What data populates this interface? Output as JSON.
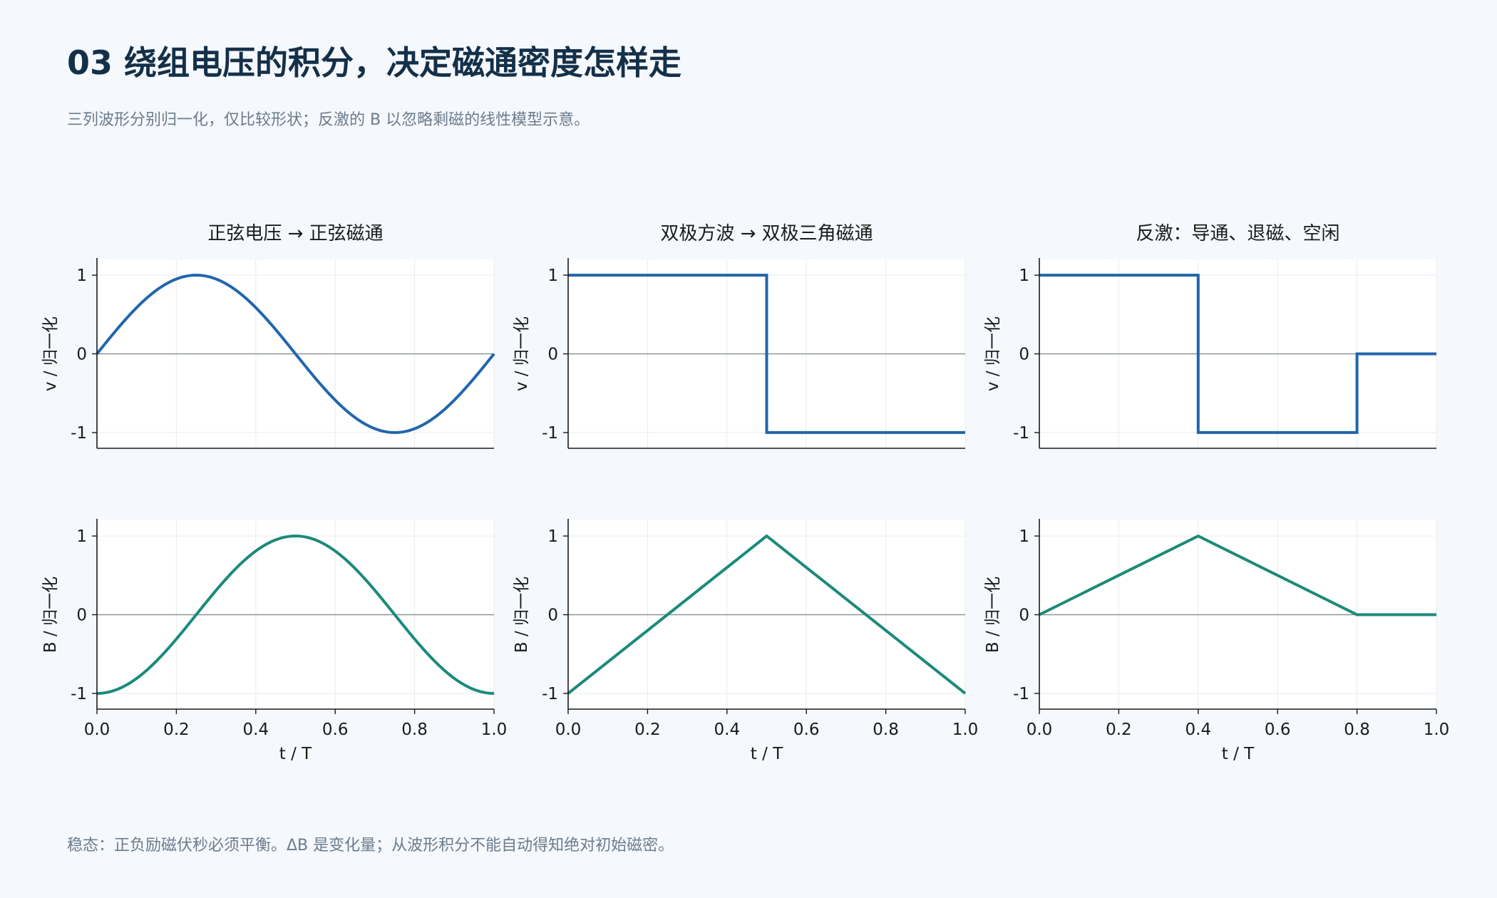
{
  "header": {
    "title": "03  绕组电压的积分，决定磁通密度怎样走",
    "subtitle": "三列波形分别归一化，仅比较形状；反激的 B 以忽略剩磁的线性模型示意。"
  },
  "footer": {
    "note": "稳态：正负励磁伏秒必须平衡。ΔB 是变化量；从波形积分不能自动得知绝对初始磁密。"
  },
  "colors": {
    "voltage": "#2166ac",
    "flux": "#1b8a7a",
    "zero_line": "#8a9499",
    "grid": "#e8ecef",
    "axis": "#1a1a1a"
  },
  "chart_data": [
    {
      "type": "line",
      "title": "正弦电压 → 正弦磁通",
      "xlabel": "",
      "ylabel": "v / 归一化",
      "xlim": [
        0,
        1
      ],
      "ylim": [
        -1.2,
        1.2
      ],
      "yticks": [
        "1",
        "0",
        "-1"
      ],
      "xticks": [],
      "grid": true,
      "series": [
        {
          "function": "sin",
          "points": [
            [
              0,
              0
            ],
            [
              0.25,
              1
            ],
            [
              0.5,
              0
            ],
            [
              0.75,
              -1
            ],
            [
              1,
              0
            ]
          ]
        }
      ]
    },
    {
      "type": "line",
      "title": "双极方波 → 双极三角磁通",
      "xlabel": "",
      "ylabel": "v / 归一化",
      "xlim": [
        0,
        1
      ],
      "ylim": [
        -1.2,
        1.2
      ],
      "yticks": [
        "1",
        "0",
        "-1"
      ],
      "xticks": [],
      "grid": true,
      "series": [
        {
          "function": "step",
          "points": [
            [
              0,
              1
            ],
            [
              0.5,
              1
            ],
            [
              0.5,
              -1
            ],
            [
              1,
              -1
            ]
          ]
        }
      ]
    },
    {
      "type": "line",
      "title": "反激：导通、退磁、空闲",
      "xlabel": "",
      "ylabel": "v / 归一化",
      "xlim": [
        0,
        1
      ],
      "ylim": [
        -1.2,
        1.2
      ],
      "yticks": [
        "1",
        "0",
        "-1"
      ],
      "xticks": [],
      "grid": true,
      "series": [
        {
          "function": "step",
          "points": [
            [
              0,
              1
            ],
            [
              0.4,
              1
            ],
            [
              0.4,
              -1
            ],
            [
              0.8,
              -1
            ],
            [
              0.8,
              0
            ],
            [
              1,
              0
            ]
          ]
        }
      ]
    },
    {
      "type": "line",
      "title": "",
      "xlabel": "t / T",
      "ylabel": "B / 归一化",
      "xlim": [
        0,
        1
      ],
      "ylim": [
        -1.2,
        1.2
      ],
      "yticks": [
        "1",
        "0",
        "-1"
      ],
      "xticks": [
        "0.0",
        "0.2",
        "0.4",
        "0.6",
        "0.8",
        "1.0"
      ],
      "grid": true,
      "series": [
        {
          "function": "negcos",
          "points": [
            [
              0,
              -1
            ],
            [
              0.25,
              0
            ],
            [
              0.5,
              1
            ],
            [
              0.75,
              0
            ],
            [
              1,
              -1
            ]
          ]
        }
      ]
    },
    {
      "type": "line",
      "title": "",
      "xlabel": "t / T",
      "ylabel": "B / 归一化",
      "xlim": [
        0,
        1
      ],
      "ylim": [
        -1.2,
        1.2
      ],
      "yticks": [
        "1",
        "0",
        "-1"
      ],
      "xticks": [
        "0.0",
        "0.2",
        "0.4",
        "0.6",
        "0.8",
        "1.0"
      ],
      "grid": true,
      "series": [
        {
          "function": "linear",
          "points": [
            [
              0,
              -1
            ],
            [
              0.5,
              1
            ],
            [
              1,
              -1
            ]
          ]
        }
      ]
    },
    {
      "type": "line",
      "title": "",
      "xlabel": "t / T",
      "ylabel": "B / 归一化",
      "xlim": [
        0,
        1
      ],
      "ylim": [
        -1.2,
        1.2
      ],
      "yticks": [
        "1",
        "0",
        "-1"
      ],
      "xticks": [
        "0.0",
        "0.2",
        "0.4",
        "0.6",
        "0.8",
        "1.0"
      ],
      "grid": true,
      "series": [
        {
          "function": "linear",
          "points": [
            [
              0,
              0
            ],
            [
              0.4,
              1
            ],
            [
              0.8,
              0
            ],
            [
              1,
              0
            ]
          ]
        }
      ]
    }
  ]
}
